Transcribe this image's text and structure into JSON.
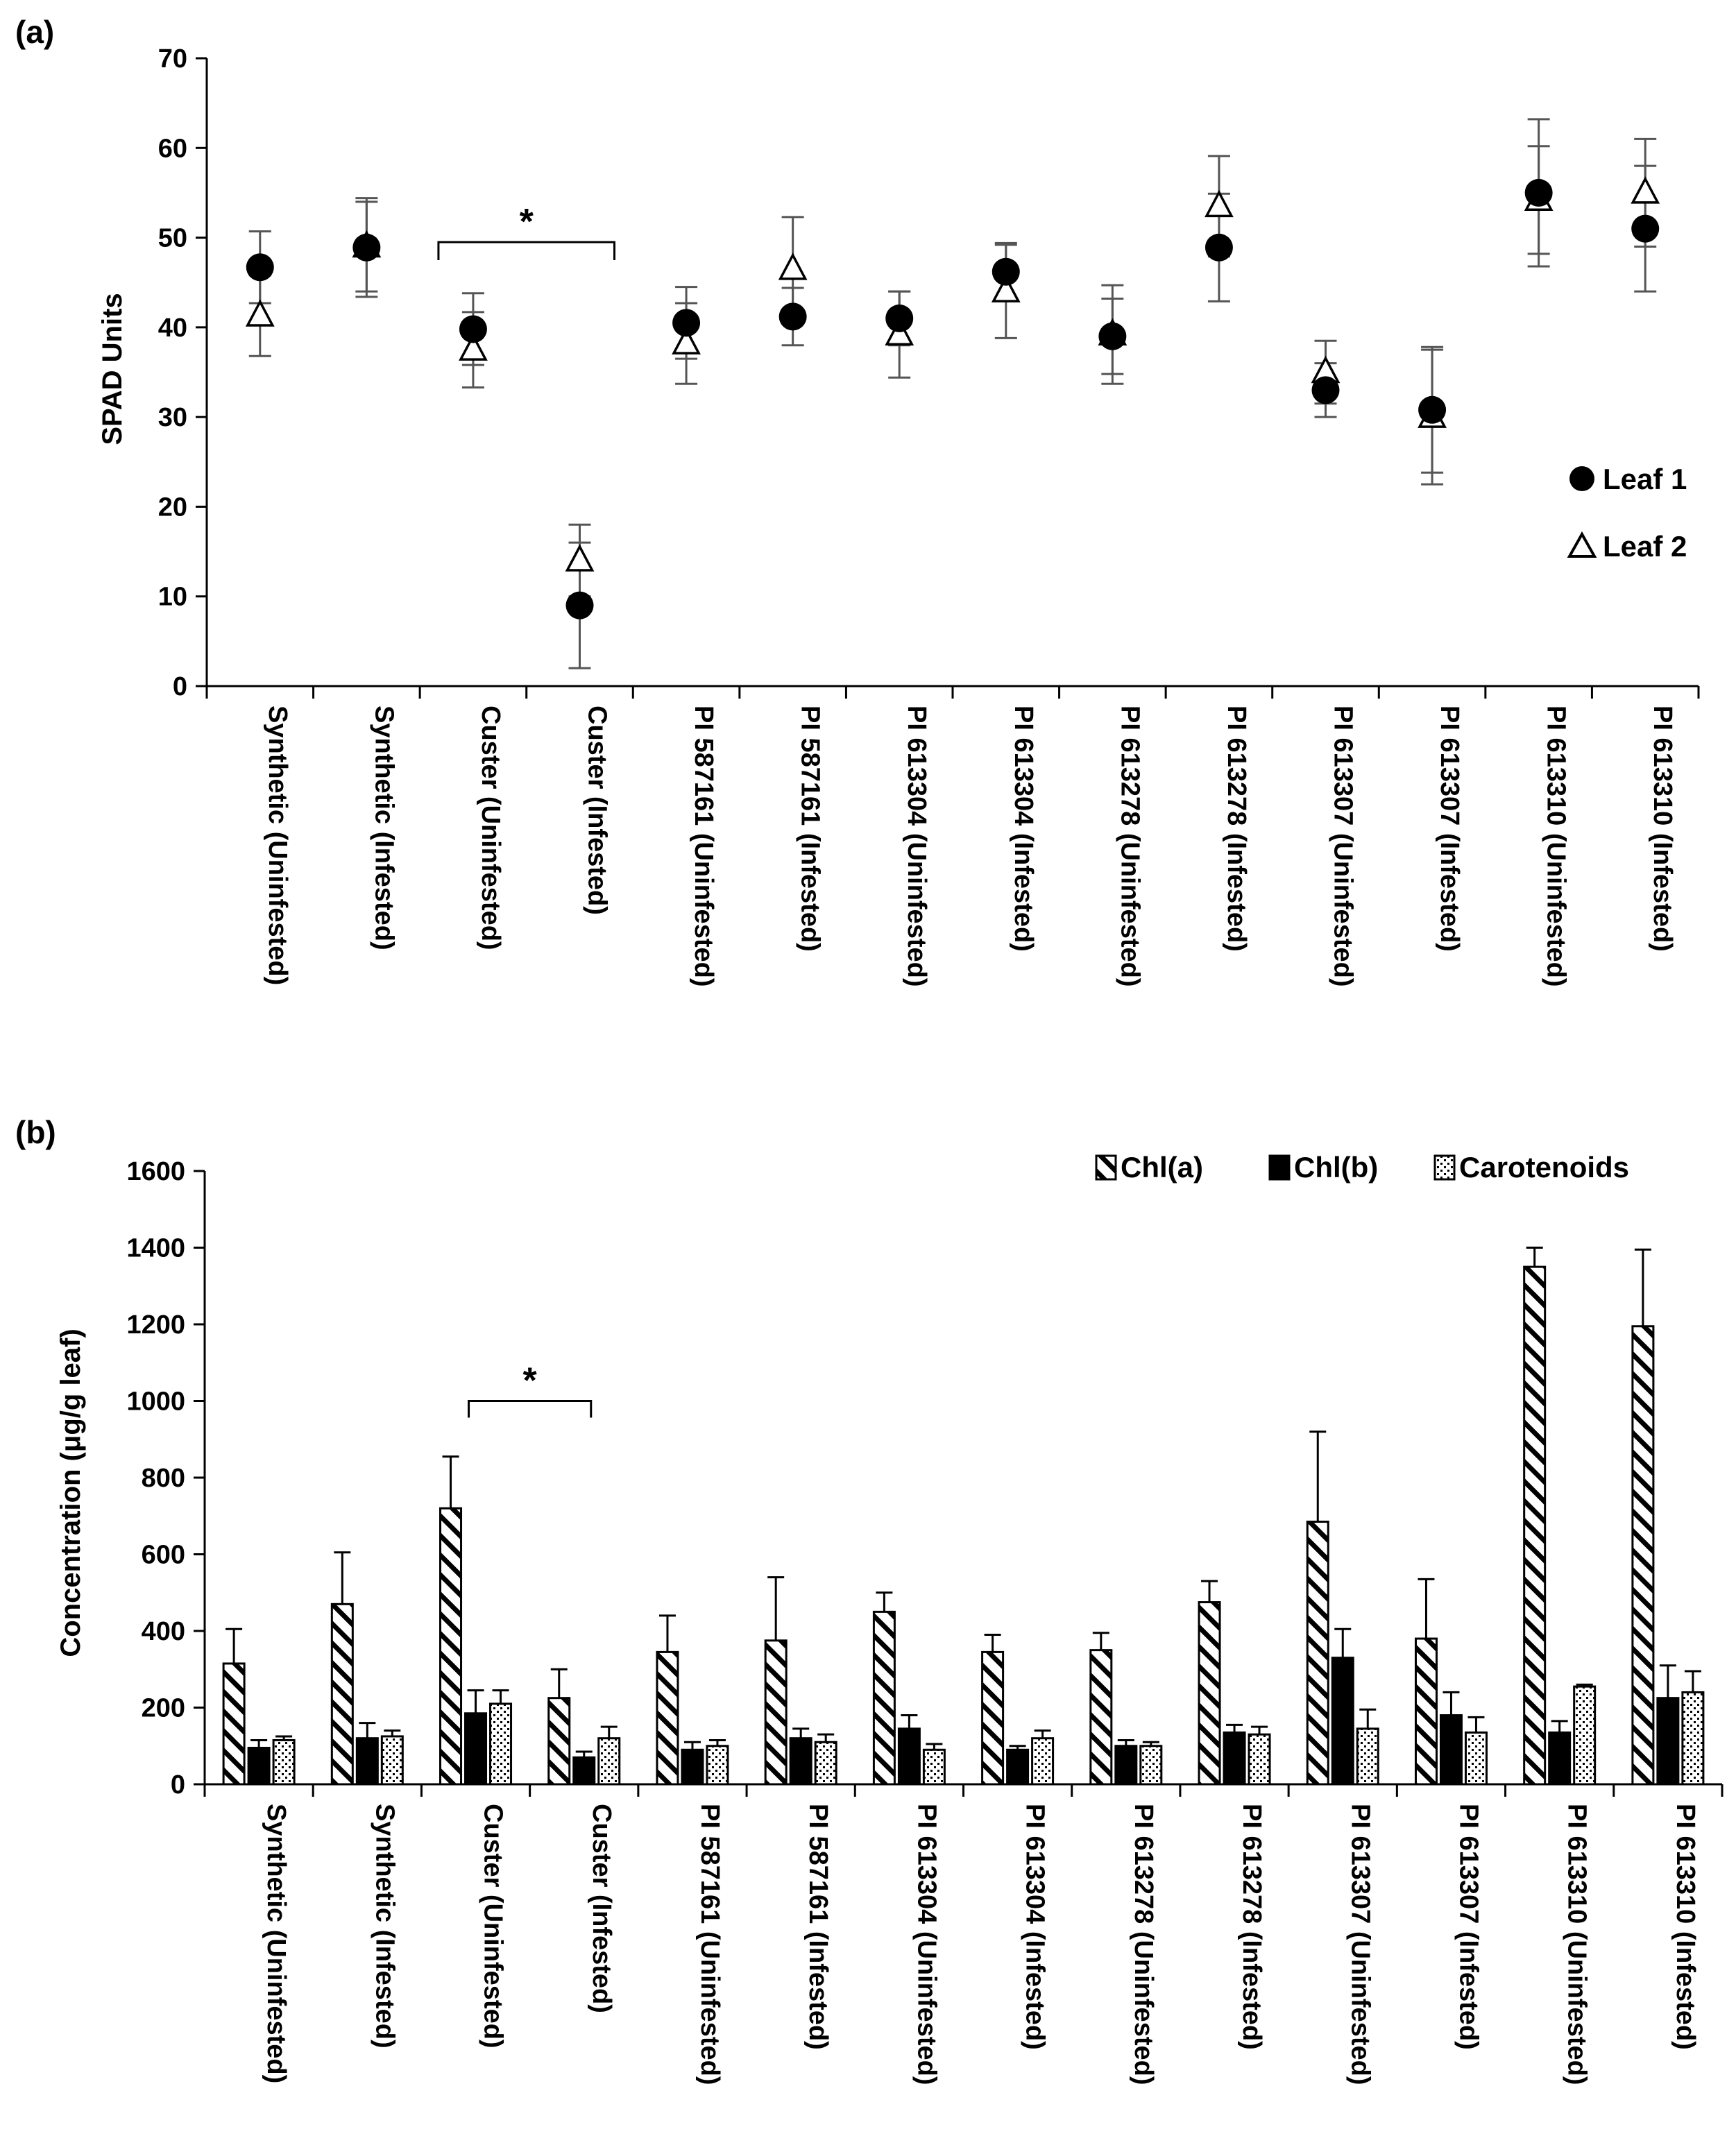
{
  "chart_data": [
    {
      "panel_label": "(a)",
      "type": "scatter",
      "ylabel": "SPAD Units",
      "xlabel": "",
      "ylim": [
        0,
        70
      ],
      "yticks": [
        0,
        10,
        20,
        30,
        40,
        50,
        60,
        70
      ],
      "grid": false,
      "legend_position": "right",
      "categories": [
        "Synthetic (Uninfested)",
        "Synthetic (Infested)",
        "Custer (Uninfested)",
        "Custer (Infested)",
        "PI 587161 (Uninfested)",
        "PI 587161 (Infested)",
        "PI 613304 (Uninfested)",
        "PI 613304 (Infested)",
        "PI 613278 (Uninfested)",
        "PI 613278 (Infested)",
        "PI 613307 (Uninfested)",
        "PI 613307 (Infested)",
        "PI 613310 (Uninfested)",
        "PI 613310 (Infested)"
      ],
      "series": [
        {
          "name": "Leaf 1",
          "marker": "filled-circle",
          "values": [
            46.7,
            48.9,
            39.8,
            9.0,
            40.5,
            41.2,
            41.0,
            46.2,
            39.0,
            48.9,
            33.0,
            30.8,
            55.0,
            51.0
          ],
          "errors": [
            4.0,
            5.5,
            4.0,
            7.0,
            4.0,
            3.2,
            3.0,
            3.2,
            4.2,
            6.0,
            3.0,
            7.0,
            8.2,
            7.0
          ]
        },
        {
          "name": "Leaf 2",
          "marker": "open-triangle",
          "values": [
            41.3,
            49.0,
            37.5,
            14.0,
            38.2,
            46.5,
            39.2,
            44.0,
            39.2,
            53.5,
            35.0,
            30.0,
            54.2,
            55.0
          ],
          "errors": [
            4.5,
            5.0,
            4.2,
            4.0,
            4.5,
            5.8,
            4.8,
            5.2,
            5.5,
            5.6,
            3.5,
            7.5,
            6.0,
            6.0
          ]
        }
      ],
      "annotations": [
        {
          "text": "*",
          "bracket_from": "Custer (Uninfested)",
          "bracket_to": "Custer (Infested)",
          "y": 49.5
        }
      ]
    },
    {
      "panel_label": "(b)",
      "type": "bar",
      "ylabel": "Concentration (μg/g leaf)",
      "xlabel": "",
      "ylim": [
        0,
        1600
      ],
      "yticks": [
        0,
        200,
        400,
        600,
        800,
        1000,
        1200,
        1400,
        1600
      ],
      "grid": false,
      "legend_position": "top-right",
      "categories": [
        "Synthetic (Uninfested)",
        "Synthetic (Infested)",
        "Custer (Uninfested)",
        "Custer (Infested)",
        "PI 587161 (Uninfested)",
        "PI 587161 (Infested)",
        "PI 613304 (Uninfested)",
        "PI 613304 (Infested)",
        "PI 613278 (Uninfested)",
        "PI 613278 (Infested)",
        "PI 613307 (Uninfested)",
        "PI 613307 (Infested)",
        "PI 613310 (Uninfested)",
        "PI 613310 (Infested)"
      ],
      "series": [
        {
          "name": "Chl(a)",
          "pattern": "diagonal-hatch",
          "values": [
            315,
            470,
            720,
            225,
            345,
            375,
            450,
            345,
            350,
            475,
            685,
            380,
            1350,
            1195
          ],
          "errors": [
            90,
            135,
            135,
            75,
            95,
            165,
            50,
            45,
            45,
            55,
            235,
            155,
            50,
            200
          ]
        },
        {
          "name": "Chl(b)",
          "pattern": "solid-black",
          "values": [
            95,
            120,
            185,
            70,
            90,
            120,
            145,
            90,
            100,
            135,
            330,
            180,
            135,
            225
          ],
          "errors": [
            20,
            40,
            60,
            15,
            20,
            25,
            35,
            10,
            15,
            20,
            75,
            60,
            30,
            85
          ]
        },
        {
          "name": "Carotenoids",
          "pattern": "dotted",
          "values": [
            115,
            125,
            210,
            120,
            100,
            110,
            90,
            120,
            100,
            130,
            145,
            135,
            255,
            240
          ],
          "errors": [
            10,
            15,
            35,
            30,
            15,
            20,
            15,
            20,
            10,
            20,
            50,
            40,
            5,
            55
          ]
        }
      ],
      "annotations": [
        {
          "text": "*",
          "bracket_from": "Custer (Uninfested)",
          "bracket_to": "Custer (Infested)",
          "y": 1000
        }
      ]
    }
  ]
}
